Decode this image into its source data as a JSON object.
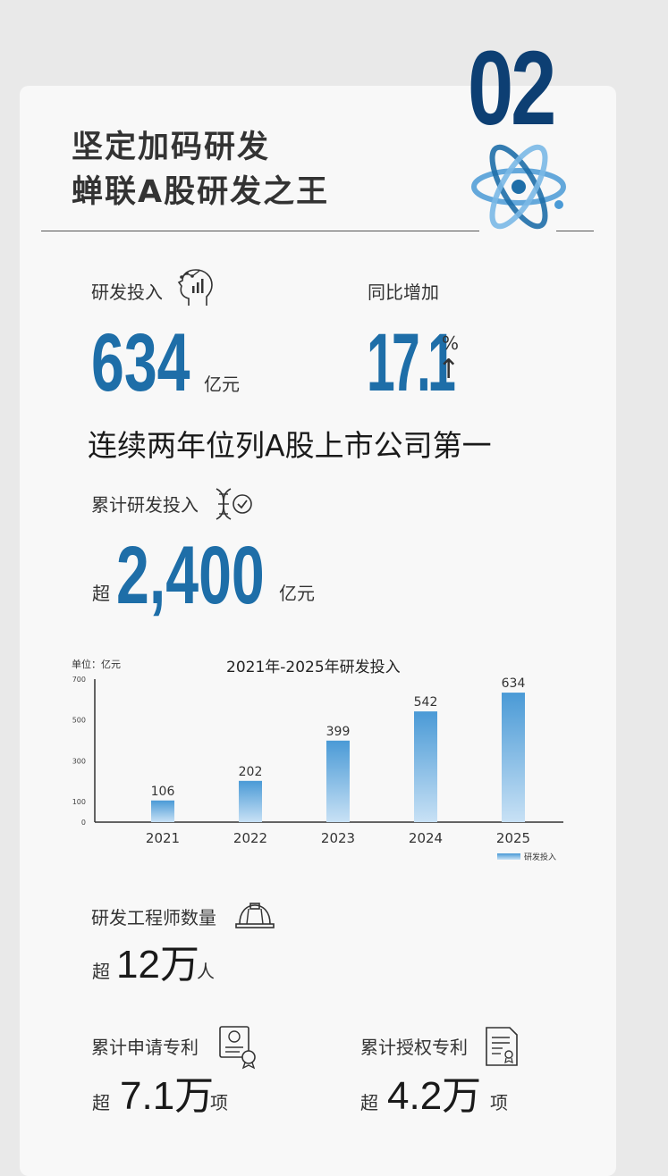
{
  "section_number": "02",
  "headline": {
    "line1": "坚定加码研发",
    "line2": "蝉联A股研发之王"
  },
  "rd_investment": {
    "label": "研发投入",
    "value": "634",
    "unit": "亿元"
  },
  "yoy_growth": {
    "label": "同比增加",
    "value": "17.1",
    "unit": "%",
    "arrow": "↑"
  },
  "ranking_statement": "连续两年位列A股上市公司第一",
  "cumulative_rd": {
    "label": "累计研发投入",
    "prefix": "超",
    "value": "2,400",
    "unit": "亿元"
  },
  "chart_data": {
    "type": "bar",
    "title": "2021年-2025年研发投入",
    "unit_label": "单位：亿元",
    "categories": [
      "2021",
      "2022",
      "2023",
      "2024",
      "2025"
    ],
    "series": [
      {
        "name": "研发投入",
        "values": [
          106,
          202,
          399,
          542,
          634
        ]
      }
    ],
    "ylim": [
      0,
      700
    ],
    "y_ticks": [
      "0",
      "100",
      "300",
      "500",
      "700"
    ],
    "legend_position": "bottom-right",
    "grid": false,
    "bar_color": "#4a9ad6"
  },
  "engineers": {
    "label": "研发工程师数量",
    "prefix": "超",
    "value": "12万",
    "unit": "人"
  },
  "patents_applied": {
    "label": "累计申请专利",
    "prefix": "超",
    "value": "7.1万",
    "unit": "项"
  },
  "patents_granted": {
    "label": "累计授权专利",
    "prefix": "超",
    "value": "4.2万",
    "unit": "项"
  },
  "colors": {
    "accent": "#1e6ea8",
    "number_dark": "#0d3f73",
    "background": "#e9e9e9",
    "card": "#f8f8f8"
  },
  "icons": [
    "atom-icon",
    "head-chart-icon",
    "dna-check-icon",
    "hard-hat-icon",
    "certificate-icon",
    "document-icon"
  ]
}
